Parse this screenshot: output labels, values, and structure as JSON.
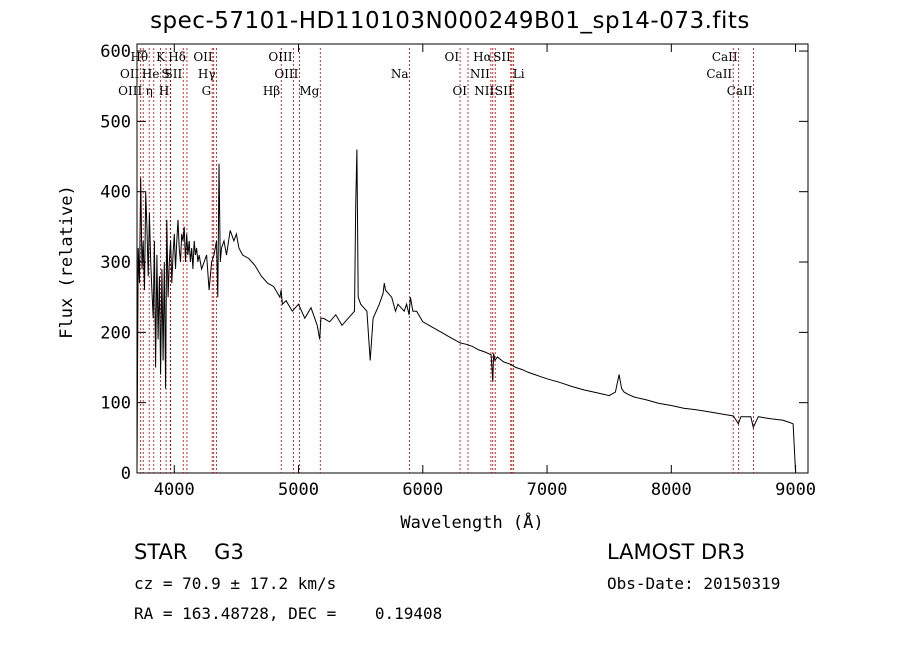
{
  "chart_data": {
    "type": "line",
    "title": "spec-57101-HD110103N000249B01_sp14-073.fits",
    "xlabel": "Wavelength (Å)",
    "ylabel": "Flux (relative)",
    "xlim": [
      3700,
      9100
    ],
    "ylim": [
      0,
      610
    ],
    "xticks": [
      4000,
      5000,
      6000,
      7000,
      8000,
      9000
    ],
    "yticks": [
      0,
      100,
      200,
      300,
      400,
      500,
      600
    ],
    "x": [
      3700,
      3710,
      3720,
      3730,
      3740,
      3750,
      3760,
      3770,
      3780,
      3790,
      3800,
      3810,
      3820,
      3830,
      3840,
      3850,
      3860,
      3870,
      3880,
      3890,
      3900,
      3910,
      3920,
      3930,
      3940,
      3950,
      3960,
      3970,
      3980,
      3990,
      4000,
      4010,
      4020,
      4030,
      4040,
      4050,
      4060,
      4070,
      4080,
      4090,
      4100,
      4110,
      4120,
      4130,
      4140,
      4150,
      4160,
      4170,
      4180,
      4190,
      4200,
      4220,
      4240,
      4260,
      4280,
      4300,
      4320,
      4340,
      4350,
      4360,
      4370,
      4380,
      4400,
      4420,
      4450,
      4480,
      4500,
      4520,
      4550,
      4600,
      4650,
      4700,
      4750,
      4800,
      4850,
      4860,
      4870,
      4900,
      4950,
      5000,
      5050,
      5100,
      5150,
      5170,
      5180,
      5200,
      5250,
      5300,
      5350,
      5400,
      5450,
      5460,
      5470,
      5480,
      5500,
      5550,
      5577,
      5600,
      5650,
      5680,
      5690,
      5700,
      5750,
      5780,
      5800,
      5850,
      5870,
      5890,
      5900,
      5920,
      5950,
      6000,
      6050,
      6100,
      6150,
      6200,
      6250,
      6300,
      6350,
      6400,
      6450,
      6500,
      6550,
      6563,
      6570,
      6580,
      6600,
      6650,
      6700,
      6750,
      6800,
      6850,
      6900,
      6950,
      7000,
      7100,
      7200,
      7300,
      7400,
      7500,
      7550,
      7580,
      7600,
      7620,
      7650,
      7700,
      7800,
      7900,
      8000,
      8100,
      8200,
      8300,
      8400,
      8500,
      8540,
      8560,
      8600,
      8640,
      8660,
      8700,
      8800,
      8900,
      8950,
      8980,
      9000
    ],
    "y": [
      0,
      320,
      270,
      420,
      290,
      330,
      260,
      400,
      350,
      280,
      370,
      300,
      260,
      220,
      330,
      150,
      310,
      190,
      280,
      140,
      290,
      160,
      300,
      120,
      360,
      250,
      300,
      330,
      270,
      310,
      340,
      290,
      330,
      360,
      320,
      300,
      340,
      330,
      350,
      300,
      340,
      310,
      330,
      300,
      320,
      290,
      330,
      310,
      320,
      300,
      310,
      290,
      300,
      310,
      260,
      300,
      310,
      330,
      250,
      440,
      300,
      320,
      330,
      310,
      345,
      330,
      340,
      320,
      310,
      305,
      295,
      280,
      270,
      265,
      250,
      260,
      240,
      245,
      230,
      240,
      220,
      235,
      210,
      190,
      220,
      220,
      215,
      225,
      210,
      220,
      230,
      380,
      460,
      250,
      240,
      230,
      160,
      220,
      240,
      255,
      270,
      260,
      250,
      230,
      240,
      230,
      240,
      225,
      250,
      230,
      230,
      215,
      210,
      205,
      200,
      195,
      190,
      185,
      183,
      180,
      175,
      172,
      168,
      130,
      170,
      160,
      165,
      158,
      155,
      150,
      147,
      143,
      140,
      137,
      134,
      129,
      123,
      118,
      114,
      110,
      115,
      140,
      120,
      115,
      112,
      108,
      104,
      99,
      96,
      92,
      90,
      87,
      84,
      81,
      70,
      80,
      80,
      80,
      65,
      80,
      77,
      75,
      72,
      70,
      0
    ],
    "lines": [
      {
        "label": "Hθ",
        "x": 3798,
        "row": 0,
        "side": "left"
      },
      {
        "label": "OII",
        "x": 3727,
        "row": 1,
        "side": "left"
      },
      {
        "label": "OIII",
        "x": 3750,
        "row": 2,
        "side": "left"
      },
      {
        "label": "He",
        "x": 3889,
        "row": 1,
        "side": "left"
      },
      {
        "label": "K",
        "x": 3934,
        "row": 0,
        "side": "left"
      },
      {
        "label": "η",
        "x": 3835,
        "row": 2,
        "side": "left"
      },
      {
        "label": "S",
        "x": 3970,
        "row": 1,
        "side": "left"
      },
      {
        "label": "H",
        "x": 3968,
        "row": 2,
        "side": "left"
      },
      {
        "label": "Hδ",
        "x": 4102,
        "row": 0,
        "side": "left"
      },
      {
        "label": "SII",
        "x": 4072,
        "row": 1,
        "side": "left"
      },
      {
        "label": "OII",
        "x": 4317,
        "row": 0,
        "side": "left"
      },
      {
        "label": "Hγ",
        "x": 4340,
        "row": 1,
        "side": "left"
      },
      {
        "label": "G",
        "x": 4305,
        "row": 2,
        "side": "left"
      },
      {
        "label": "Hβ",
        "x": 4861,
        "row": 2,
        "side": "left"
      },
      {
        "label": "OIII",
        "x": 4959,
        "row": 0,
        "side": "left"
      },
      {
        "label": "OIII",
        "x": 5007,
        "row": 1,
        "side": "left"
      },
      {
        "label": "Mg",
        "x": 5175,
        "row": 2,
        "side": "left"
      },
      {
        "label": "Na",
        "x": 5893,
        "row": 1,
        "side": "left"
      },
      {
        "label": "OI",
        "x": 6300,
        "row": 0,
        "side": "left"
      },
      {
        "label": "OI",
        "x": 6364,
        "row": 2,
        "side": "left"
      },
      {
        "label": "Hα",
        "x": 6563,
        "row": 0,
        "side": "left"
      },
      {
        "label": "NII",
        "x": 6548,
        "row": 1,
        "side": "left"
      },
      {
        "label": "NII",
        "x": 6583,
        "row": 2,
        "side": "left"
      },
      {
        "label": "SII",
        "x": 6717,
        "row": 0,
        "side": "left"
      },
      {
        "label": "Li",
        "x": 6708,
        "row": 1,
        "side": "right"
      },
      {
        "label": "SII",
        "x": 6731,
        "row": 2,
        "side": "left"
      },
      {
        "label": "CaII",
        "x": 8542,
        "row": 0,
        "side": "left"
      },
      {
        "label": "CaII",
        "x": 8498,
        "row": 1,
        "side": "left"
      },
      {
        "label": "CaII",
        "x": 8662,
        "row": 2,
        "side": "left"
      }
    ]
  },
  "info": {
    "object_type": "STAR    G3",
    "survey": "LAMOST DR3",
    "cz": "cz = 70.9 ± 17.2 km/s",
    "obs_date": "Obs-Date: 20150319",
    "radec": "RA = 163.48728, DEC =    0.19408"
  }
}
